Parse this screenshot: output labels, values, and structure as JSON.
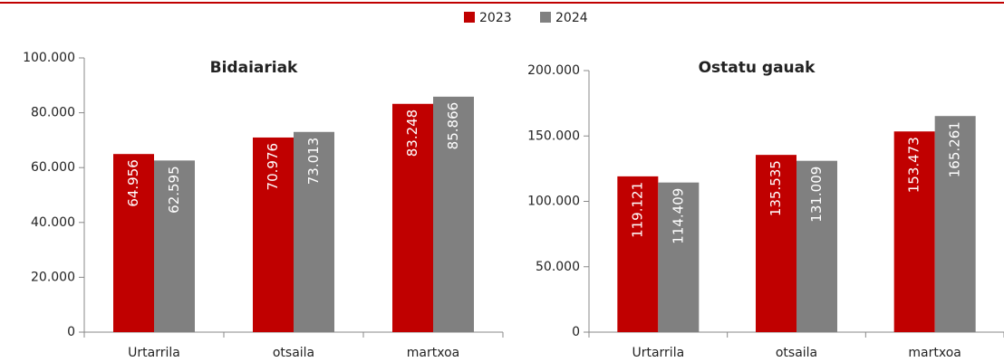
{
  "chart_data": [
    {
      "type": "bar",
      "title": "Bidaiariak",
      "categories": [
        "Urtarrila",
        "otsaila",
        "martxoa"
      ],
      "series": [
        {
          "name": "2023",
          "color": "#c00000",
          "values": [
            64956,
            70976,
            83248
          ],
          "value_labels": [
            "64.956",
            "70.976",
            "83.248"
          ]
        },
        {
          "name": "2024",
          "color": "#808080",
          "values": [
            62595,
            73013,
            85866
          ],
          "value_labels": [
            "62.595",
            "73.013",
            "85.866"
          ]
        }
      ],
      "ylim": [
        0,
        100000
      ],
      "yticks": [
        0,
        {
          "value": 20000,
          "label": "20.000"
        },
        {
          "value": 40000,
          "label": "40.000"
        },
        {
          "value": 60000,
          "label": "60.000"
        },
        {
          "value": 80000,
          "label": "80.000"
        },
        {
          "value": 100000,
          "label": "100.000"
        }
      ],
      "grid": false
    },
    {
      "type": "bar",
      "title": "Ostatu gauak",
      "categories": [
        "Urtarrila",
        "otsaila",
        "martxoa"
      ],
      "series": [
        {
          "name": "2023",
          "color": "#c00000",
          "values": [
            119121,
            135535,
            153473
          ],
          "value_labels": [
            "119.121",
            "135.535",
            "153.473"
          ]
        },
        {
          "name": "2024",
          "color": "#808080",
          "values": [
            114409,
            131009,
            165261
          ],
          "value_labels": [
            "114.409",
            "131.009",
            "165.261"
          ]
        }
      ],
      "ylim": [
        0,
        200000
      ],
      "yticks": [
        0,
        {
          "value": 50000,
          "label": "50.000"
        },
        {
          "value": 100000,
          "label": "100.000"
        },
        {
          "value": 150000,
          "label": "150.000"
        },
        {
          "value": 200000,
          "label": "200.000"
        }
      ],
      "grid": false
    }
  ]
}
